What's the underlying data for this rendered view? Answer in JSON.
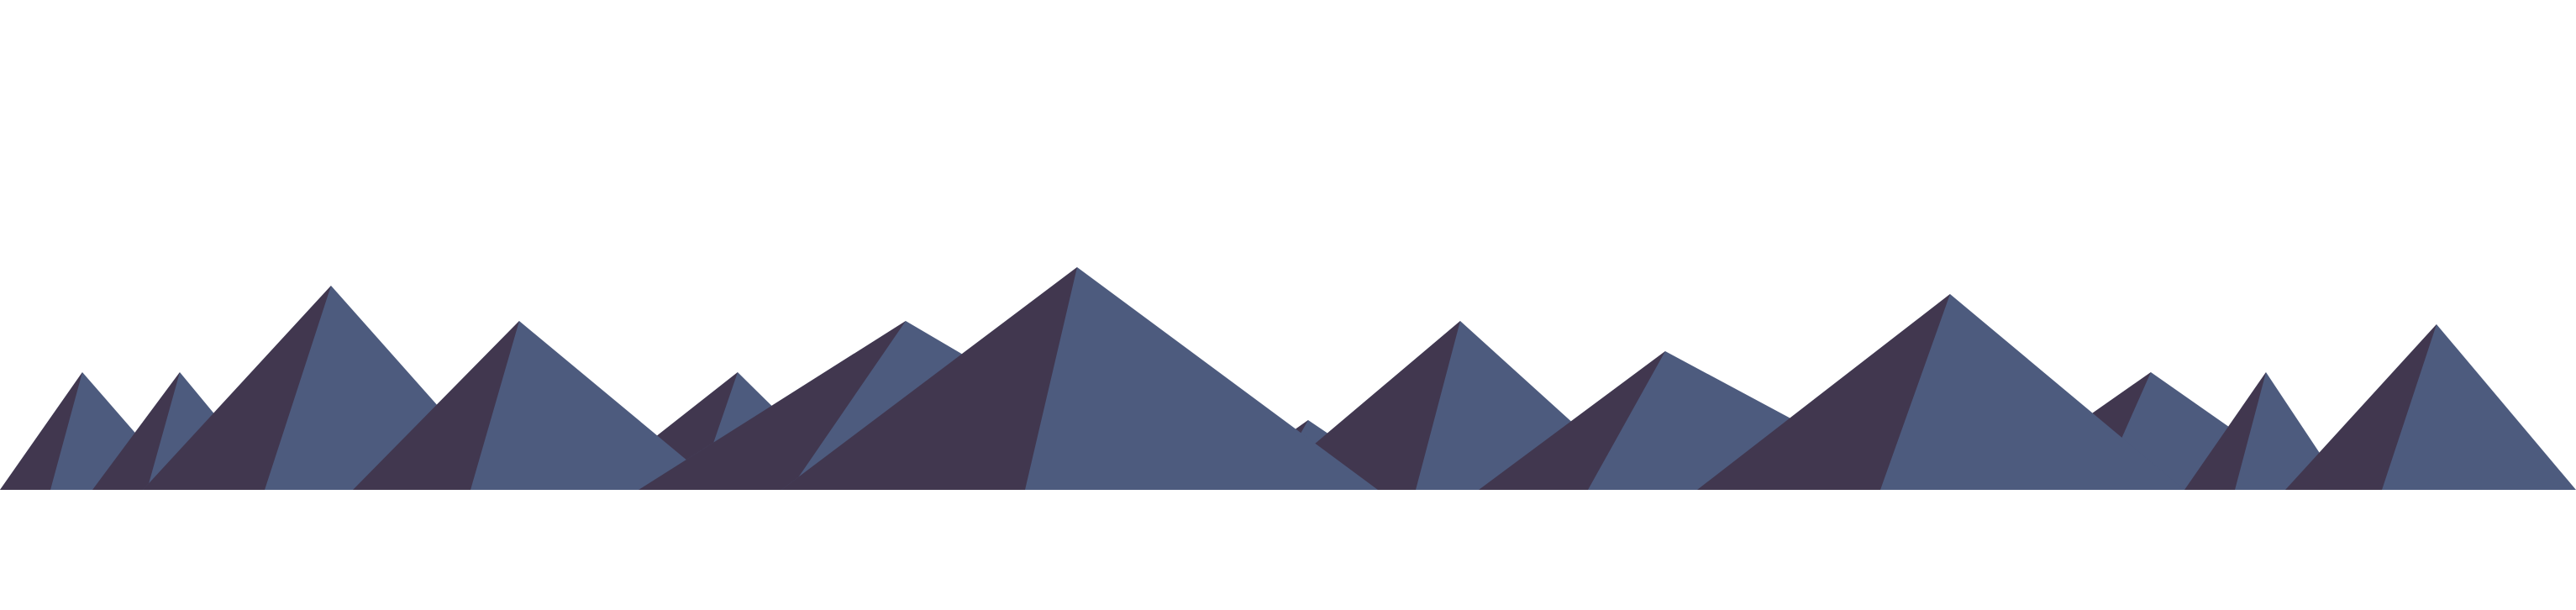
{
  "colors": {
    "background": "#ffffff",
    "mountain_light": "#4d5b7e",
    "mountain_shadow": "#41374f"
  },
  "scene": {
    "subject": "mountain-range-silhouette",
    "peak_count": 14
  }
}
